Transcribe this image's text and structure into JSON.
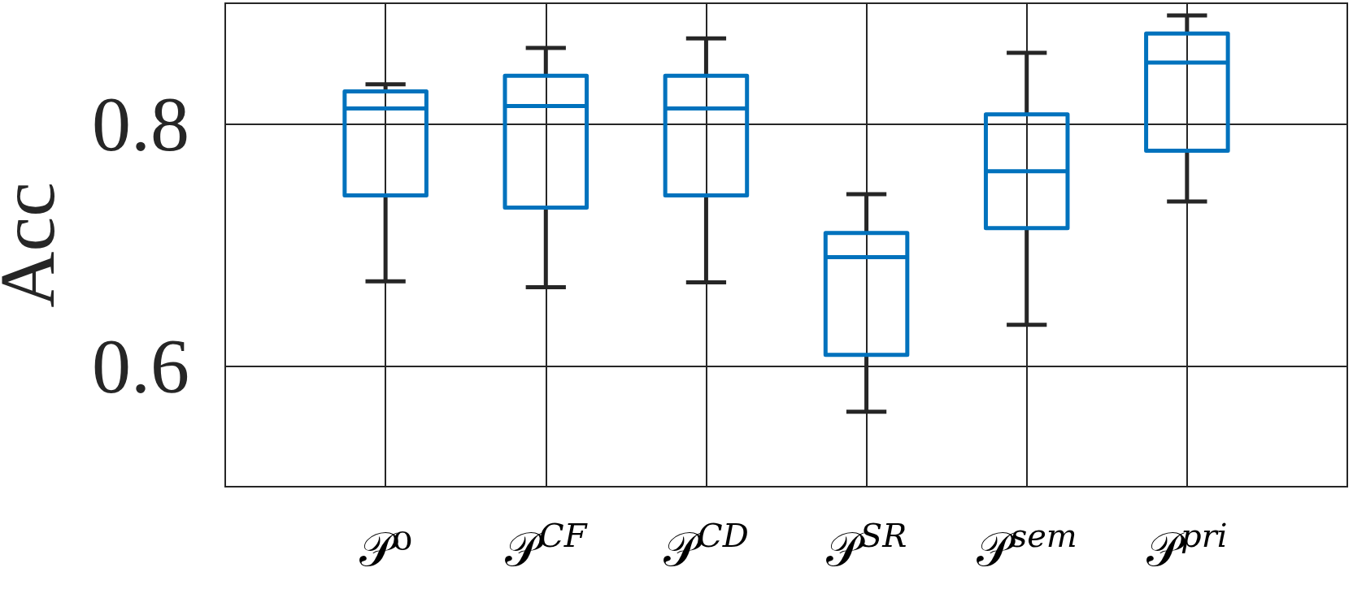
{
  "chart_data": {
    "type": "box",
    "ylabel": "Acc",
    "categories": [
      "𝒫⁰",
      "𝒫$^{CF}$",
      "𝒫$^{CD}$",
      "𝒫$^{SR}$",
      "𝒫$^{sem}$",
      "𝒫$^{pri}$"
    ],
    "boxes": [
      {
        "low": 0.67,
        "q1": 0.741,
        "median": 0.813,
        "q3": 0.827,
        "high": 0.833
      },
      {
        "low": 0.665,
        "q1": 0.731,
        "median": 0.815,
        "q3": 0.84,
        "high": 0.863
      },
      {
        "low": 0.669,
        "q1": 0.741,
        "median": 0.813,
        "q3": 0.84,
        "high": 0.871
      },
      {
        "low": 0.562,
        "q1": 0.609,
        "median": 0.69,
        "q3": 0.71,
        "high": 0.742
      },
      {
        "low": 0.634,
        "q1": 0.714,
        "median": 0.761,
        "q3": 0.808,
        "high": 0.859
      },
      {
        "low": 0.736,
        "q1": 0.778,
        "median": 0.851,
        "q3": 0.875,
        "high": 0.89
      }
    ],
    "color": "#0072bd",
    "ylim": [
      0.5,
      0.9
    ],
    "yticks": [
      0.6,
      0.8
    ],
    "grid": true
  }
}
